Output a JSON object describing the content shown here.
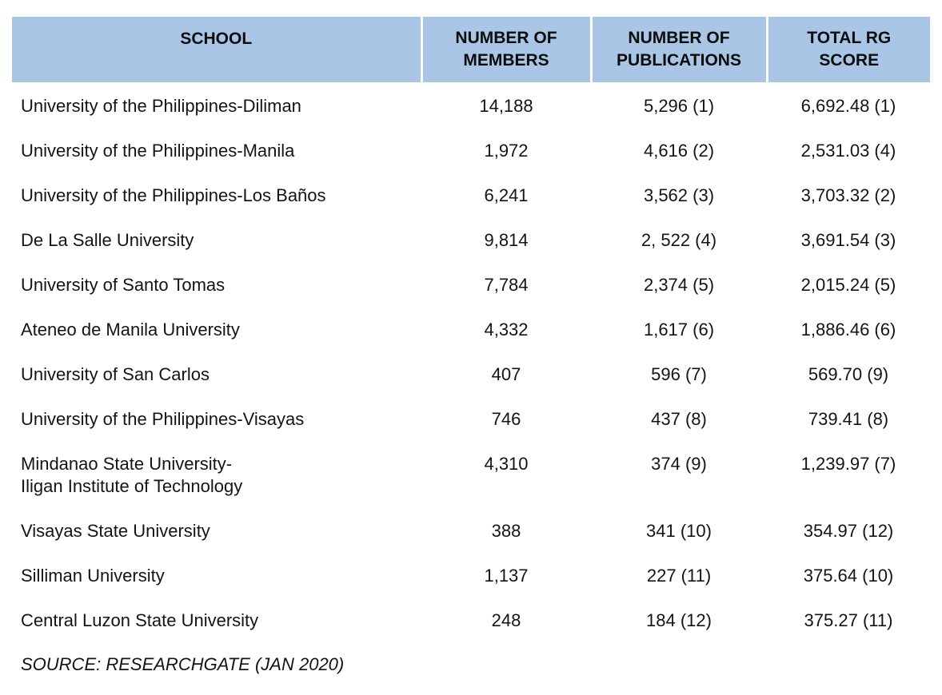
{
  "table": {
    "headers": [
      {
        "lines": [
          "SCHOOL"
        ]
      },
      {
        "lines": [
          "NUMBER OF",
          "MEMBERS"
        ]
      },
      {
        "lines": [
          "NUMBER OF",
          "PUBLICATIONS"
        ]
      },
      {
        "lines": [
          "TOTAL RG",
          "SCORE"
        ]
      }
    ],
    "rows": [
      {
        "school": [
          "University of the Philippines-Diliman"
        ],
        "members": "14,188",
        "publications": "5,296 (1)",
        "rg_score": "6,692.48 (1)"
      },
      {
        "school": [
          "University of the Philippines-Manila"
        ],
        "members": "1,972",
        "publications": "4,616 (2)",
        "rg_score": "2,531.03 (4)"
      },
      {
        "school": [
          "University of the Philippines-Los Baños"
        ],
        "members": "6,241",
        "publications": "3,562 (3)",
        "rg_score": "3,703.32 (2)"
      },
      {
        "school": [
          "De La Salle University"
        ],
        "members": "9,814",
        "publications": "2, 522 (4)",
        "rg_score": "3,691.54 (3)"
      },
      {
        "school": [
          "University of Santo Tomas"
        ],
        "members": "7,784",
        "publications": "2,374 (5)",
        "rg_score": "2,015.24 (5)"
      },
      {
        "school": [
          "Ateneo de Manila University"
        ],
        "members": "4,332",
        "publications": "1,617 (6)",
        "rg_score": "1,886.46 (6)"
      },
      {
        "school": [
          "University of San Carlos"
        ],
        "members": "407",
        "publications": "596 (7)",
        "rg_score": "569.70 (9)"
      },
      {
        "school": [
          "University of the Philippines-Visayas"
        ],
        "members": "746",
        "publications": "437 (8)",
        "rg_score": "739.41 (8)"
      },
      {
        "school": [
          "Mindanao State University-",
          "Iligan Institute of Technology"
        ],
        "members": "4,310",
        "publications": "374 (9)",
        "rg_score": "1,239.97 (7)"
      },
      {
        "school": [
          "Visayas State University"
        ],
        "members": "388",
        "publications": "341 (10)",
        "rg_score": "354.97 (12)"
      },
      {
        "school": [
          "Silliman University"
        ],
        "members": "1,137",
        "publications": "227 (11)",
        "rg_score": "375.64 (10)"
      },
      {
        "school": [
          "Central Luzon State University"
        ],
        "members": "248",
        "publications": "184 (12)",
        "rg_score": "375.27 (11)"
      }
    ]
  },
  "source": "SOURCE: RESEARCHGATE (JAN 2020)",
  "colors": {
    "header_background": "#a9c6e6",
    "text": "#141414",
    "background": "#ffffff"
  }
}
